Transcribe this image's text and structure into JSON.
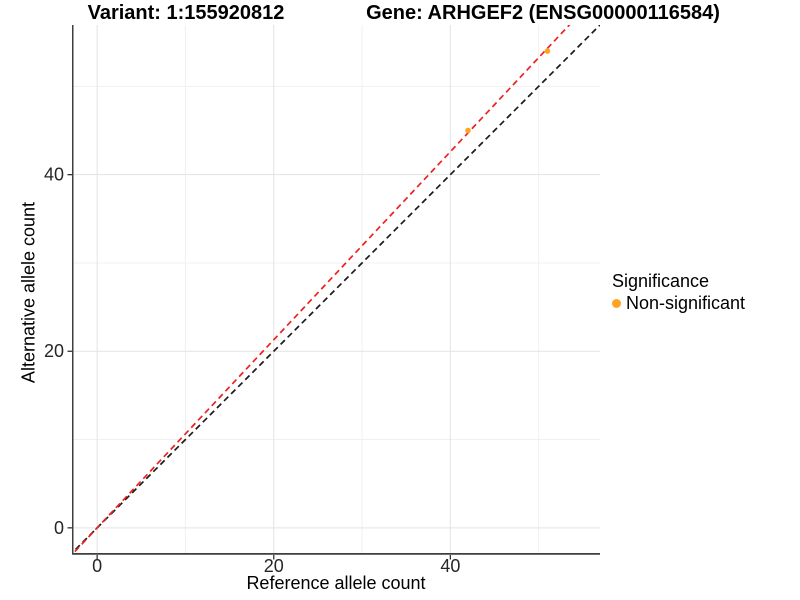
{
  "titles": {
    "variant": "Variant: 1:155920812",
    "gene": "Gene: ARHGEF2 (ENSG00000116584)"
  },
  "chart_data": {
    "type": "scatter",
    "xlabel": "Reference allele count",
    "ylabel": "Alternative allele count",
    "xlim": [
      -2.85,
      56.95
    ],
    "ylim": [
      -2.85,
      56.95
    ],
    "x_ticks": [
      0,
      20,
      40
    ],
    "y_ticks": [
      0,
      20,
      40
    ],
    "x_minor_ticks": [
      10,
      30,
      50
    ],
    "y_minor_ticks": [
      10,
      30,
      50
    ],
    "grid": "major+minor",
    "series": [
      {
        "name": "Non-significant",
        "color": "#FFA320",
        "points": [
          [
            42,
            45
          ],
          [
            51,
            54
          ]
        ]
      }
    ],
    "reference_lines": [
      {
        "name": "identity-line",
        "style": "dashed",
        "color": "#1A1A1A",
        "slope": 1.0,
        "intercept": 0
      },
      {
        "name": "fitted-ratio-line",
        "style": "dashed",
        "color": "#EE2020",
        "slope": 1.065,
        "intercept": 0
      }
    ],
    "legend": {
      "title": "Significance",
      "position": "right",
      "items": [
        {
          "label": "Non-significant",
          "color": "#FFA320"
        }
      ]
    },
    "colors": {
      "grid_major": "#E3E3E3",
      "grid_minor": "#F0F0F0",
      "axis_line": "#3F3F3F",
      "tick_mark": "#333333",
      "tick_label": "#262626"
    }
  }
}
